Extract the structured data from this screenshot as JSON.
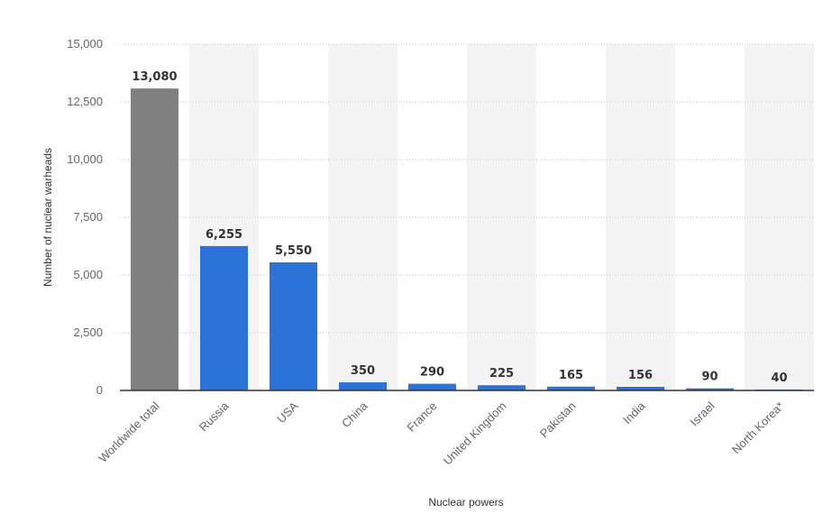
{
  "chart_data": {
    "type": "bar",
    "categories": [
      "Worldwide total",
      "Russia",
      "USA",
      "China",
      "France",
      "United Kingdom",
      "Pakistan",
      "India",
      "Israel",
      "North Korea*"
    ],
    "values": [
      13080,
      6255,
      5550,
      350,
      290,
      225,
      165,
      156,
      90,
      40
    ],
    "value_labels": [
      "13,080",
      "6,255",
      "5,550",
      "350",
      "290",
      "225",
      "165",
      "156",
      "90",
      "40"
    ],
    "xlabel": "Nuclear powers",
    "ylabel": "Number of nuclear warheads",
    "ylim": [
      0,
      15000
    ],
    "yticks": [
      0,
      2500,
      5000,
      7500,
      10000,
      12500,
      15000
    ],
    "ytick_labels": [
      "0",
      "2,500",
      "5,000",
      "7,500",
      "10,000",
      "12,500",
      "15,000"
    ],
    "grid": true,
    "colors": {
      "total": "#808080",
      "country": "#2b72d9",
      "band": "#f4f4f4"
    }
  }
}
